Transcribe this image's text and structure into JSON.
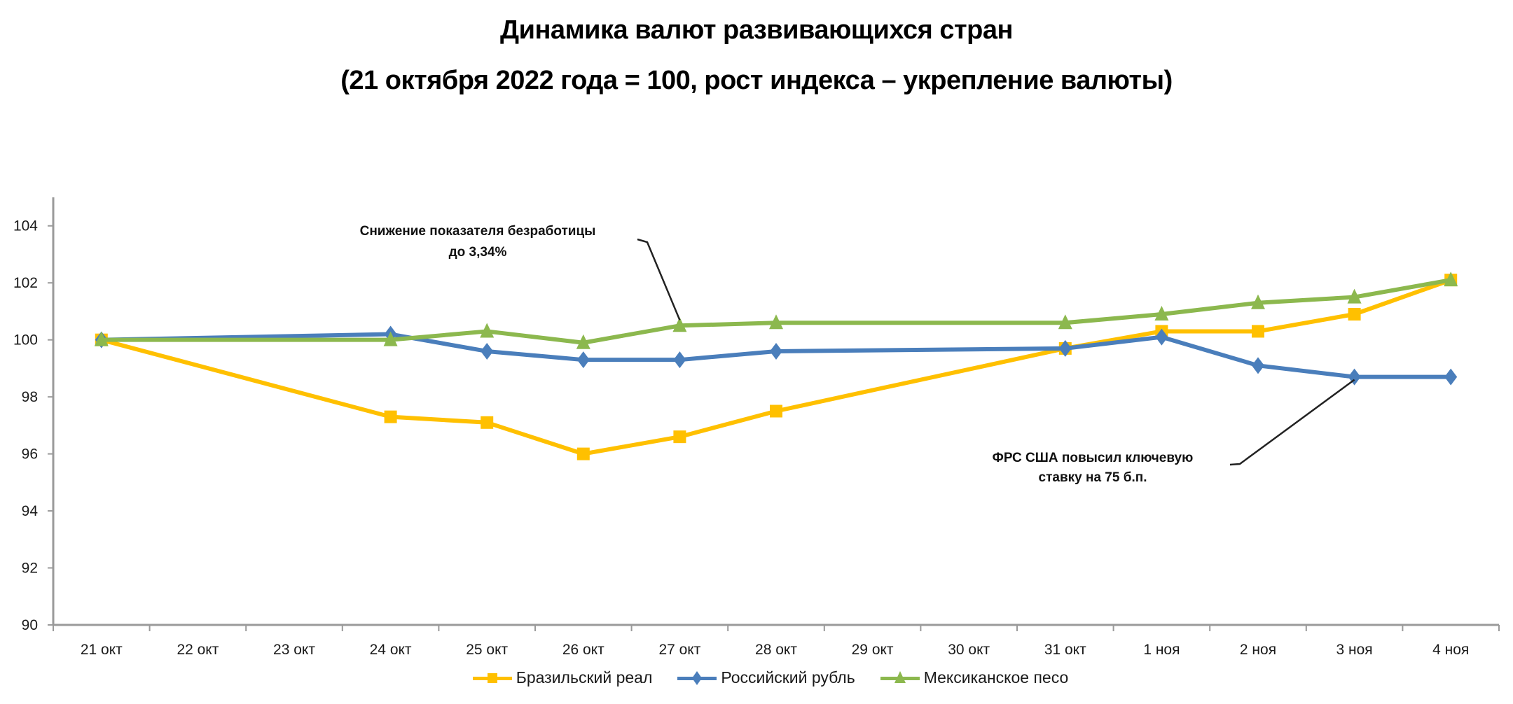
{
  "title": {
    "line1": "Динамика валют развивающихся стран",
    "line2": "(21 октября 2022 года = 100, рост индекса – укрепление валюты)"
  },
  "chart_data": {
    "type": "line",
    "title": "Динамика валют развивающихся стран (21 октября 2022 года = 100, рост индекса – укрепление валюты)",
    "xlabel": "",
    "ylabel": "",
    "categories": [
      "21 окт",
      "22 окт",
      "23 окт",
      "24 окт",
      "25 окт",
      "26 окт",
      "27 окт",
      "28 окт",
      "29 окт",
      "30 окт",
      "31 окт",
      "1 ноя",
      "2 ноя",
      "3 ноя",
      "4 ноя"
    ],
    "ylim": [
      90,
      105
    ],
    "yticks": [
      90,
      92,
      94,
      96,
      98,
      100,
      102,
      104
    ],
    "ytick_labels": [
      "90",
      "92",
      "94",
      "96",
      "98",
      "100",
      "102",
      "104"
    ],
    "grid": false,
    "legend_position": "bottom",
    "series": [
      {
        "name": "Бразильский реал",
        "color": "#FFC000",
        "marker": "square",
        "values": [
          100.0,
          null,
          null,
          97.3,
          97.1,
          96.0,
          96.6,
          97.5,
          null,
          null,
          99.7,
          100.3,
          100.3,
          100.9,
          102.1
        ]
      },
      {
        "name": "Российский рубль",
        "color": "#4A7EBB",
        "marker": "diamond",
        "values": [
          100.0,
          null,
          null,
          100.2,
          99.6,
          99.3,
          99.3,
          99.6,
          null,
          null,
          99.7,
          100.1,
          99.1,
          98.7,
          98.7
        ]
      },
      {
        "name": "Мексиканское песо",
        "color": "#8CB84E",
        "marker": "triangle",
        "values": [
          100.0,
          null,
          null,
          100.0,
          100.3,
          99.9,
          100.5,
          100.6,
          null,
          null,
          100.6,
          100.9,
          101.3,
          101.5,
          102.1
        ]
      }
    ],
    "annotations": [
      {
        "text_lines": [
          "Снижение показателя безработицы",
          "до 3,34%"
        ],
        "points_to": {
          "series": "Мексиканское песо",
          "category": "27 окт"
        }
      },
      {
        "text_lines": [
          "ФРС США повысил ключевую",
          "ставку на 75 б.п."
        ],
        "points_to": {
          "series": "Российский рубль",
          "category": "3 ноя"
        }
      }
    ]
  },
  "legend": [
    {
      "label": "Бразильский реал",
      "color": "#FFC000",
      "marker": "square"
    },
    {
      "label": "Российский рубль",
      "color": "#4A7EBB",
      "marker": "diamond"
    },
    {
      "label": "Мексиканское песо",
      "color": "#8CB84E",
      "marker": "triangle"
    }
  ]
}
